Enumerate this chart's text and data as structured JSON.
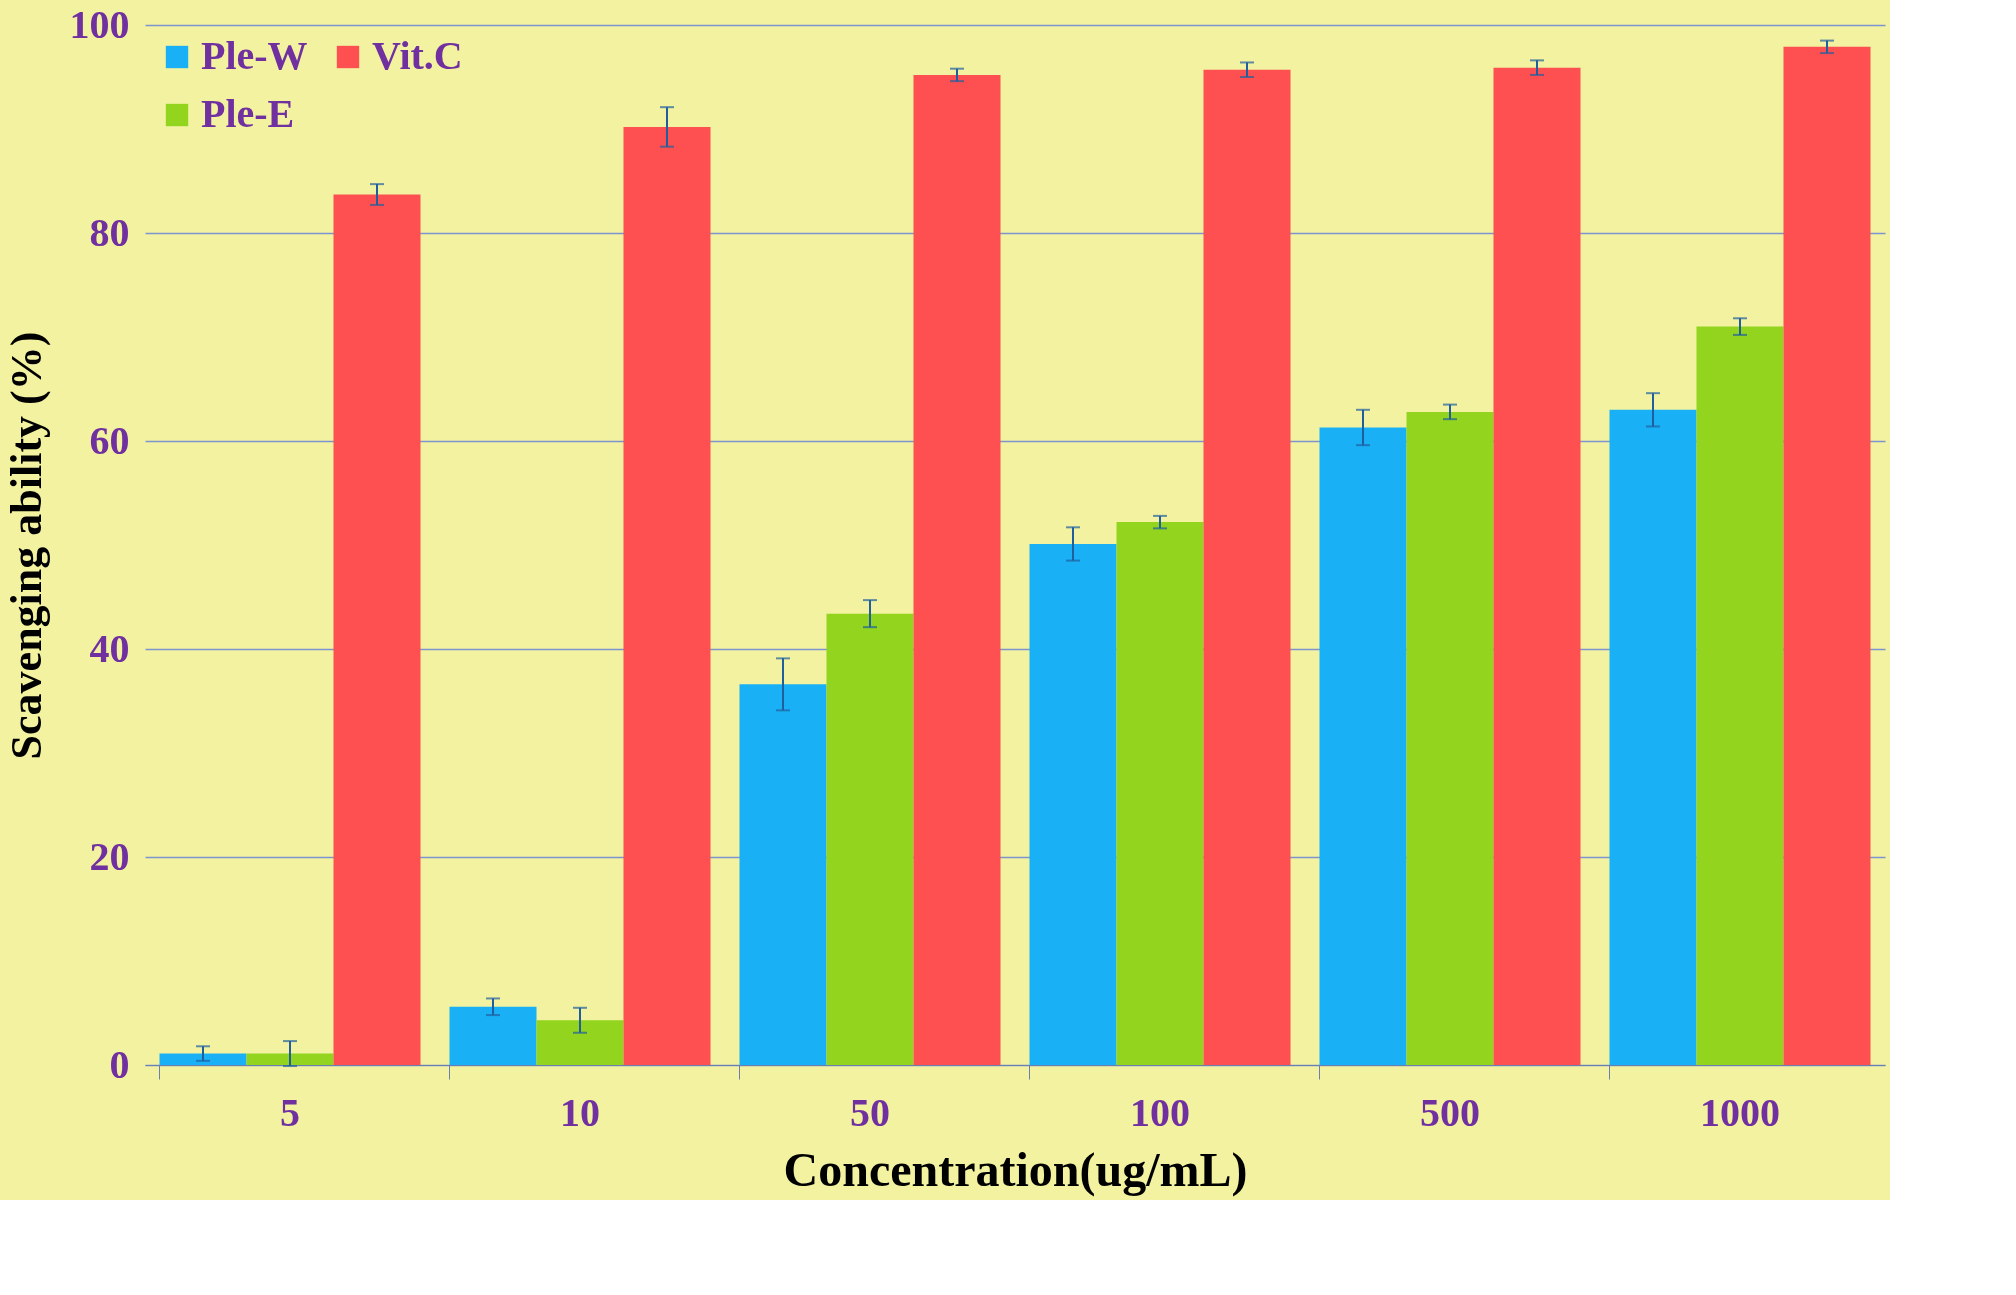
{
  "chart_data": {
    "type": "bar",
    "xlabel": "Concentration(ug/mL)",
    "ylabel": "Scavenging ability (%)",
    "categories": [
      "5",
      "10",
      "50",
      "100",
      "500",
      "1000"
    ],
    "series": [
      {
        "name": "Ple-W",
        "color": "#1ab0f5",
        "values": [
          1.1,
          5.6,
          36.6,
          50.1,
          61.3,
          63.0
        ],
        "errors": [
          0.7,
          0.8,
          2.5,
          1.6,
          1.7,
          1.6
        ]
      },
      {
        "name": "Ple-E",
        "color": "#92d41e",
        "values": [
          1.1,
          4.3,
          43.4,
          52.2,
          62.8,
          71.0
        ],
        "errors": [
          1.2,
          1.2,
          1.3,
          0.6,
          0.7,
          0.8
        ]
      },
      {
        "name": "Vit.C",
        "color": "#fe5050",
        "values": [
          83.7,
          90.2,
          95.2,
          95.7,
          95.9,
          97.9
        ],
        "errors": [
          1.0,
          1.9,
          0.6,
          0.7,
          0.7,
          0.6
        ]
      }
    ],
    "ylim": [
      0,
      100
    ],
    "yticks": [
      0,
      20,
      40,
      60,
      80,
      100
    ],
    "grid": "y",
    "legend": "top left"
  }
}
